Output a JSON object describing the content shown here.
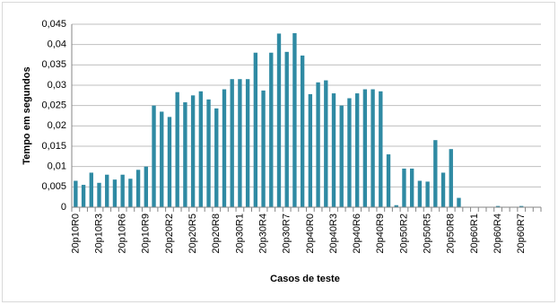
{
  "chart_data": {
    "type": "bar",
    "x_label": "Casos de teste",
    "y_label": "Tempo em segundos",
    "categories": [
      "20p10R0",
      null,
      null,
      "20p10R3",
      null,
      null,
      "20p10R6",
      null,
      null,
      "20p10R9",
      null,
      null,
      "20p20R2",
      null,
      null,
      "20p20R5",
      null,
      null,
      "20p20R8",
      null,
      null,
      "20p30R1",
      null,
      null,
      "20p30R4",
      null,
      null,
      "20p30R7",
      null,
      null,
      "20p40R0",
      null,
      null,
      "20p40R3",
      null,
      null,
      "20p40R6",
      null,
      null,
      "20p40R9",
      null,
      null,
      "20p50R2",
      null,
      null,
      "20p50R5",
      null,
      null,
      "20p50R8",
      null,
      null,
      "20p60R1",
      null,
      null,
      "20p60R4",
      null,
      null,
      "20p60R7",
      null,
      null
    ],
    "values": [
      0.0065,
      0.0055,
      0.0085,
      0.006,
      0.008,
      0.0068,
      0.008,
      0.007,
      0.0092,
      0.01,
      0.025,
      0.0235,
      0.0222,
      0.0283,
      0.0258,
      0.0275,
      0.0285,
      0.0265,
      0.0243,
      0.029,
      0.0315,
      0.0315,
      0.0315,
      0.038,
      0.0287,
      0.038,
      0.0427,
      0.0382,
      0.0428,
      0.0373,
      0.0278,
      0.0307,
      0.0312,
      0.028,
      0.025,
      0.0268,
      0.028,
      0.029,
      0.029,
      0.0285,
      0.013,
      0.0005,
      0.0095,
      0.0095,
      0.0065,
      0.0063,
      0.0165,
      0.0085,
      0.0143,
      0.0023,
      0,
      0,
      0,
      0,
      0.0003,
      0,
      0,
      0.0003,
      0,
      0
    ],
    "color": "#2f8aa3",
    "ylim": [
      0,
      0.045
    ],
    "yticks": [
      0,
      {
        "value": 0.005,
        "label": "0,005"
      },
      {
        "value": 0.01,
        "label": "0,01"
      },
      {
        "value": 0.015,
        "label": "0,015"
      },
      {
        "value": 0.02,
        "label": "0,02"
      },
      {
        "value": 0.025,
        "label": "0,025"
      },
      {
        "value": 0.03,
        "label": "0,03"
      },
      {
        "value": 0.035,
        "label": "0,035"
      },
      {
        "value": 0.04,
        "label": "0,04"
      },
      {
        "value": 0.045,
        "label": "0,045"
      }
    ],
    "grid": true
  }
}
